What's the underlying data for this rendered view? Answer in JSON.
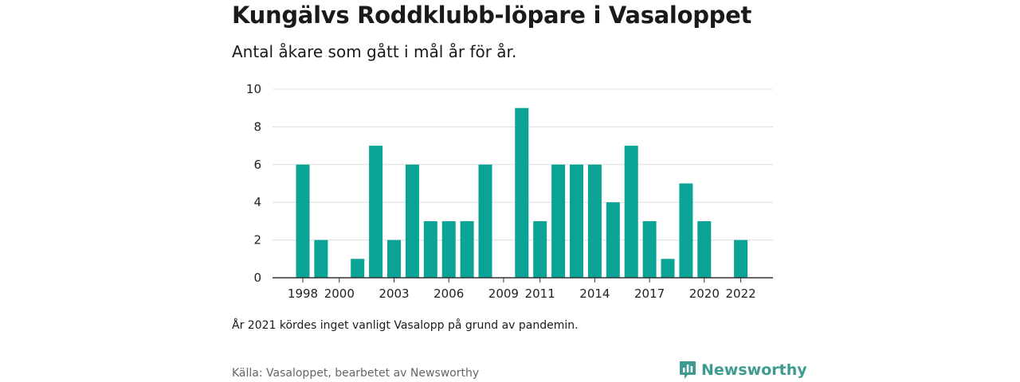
{
  "title": "Kungälvs Roddklubb-löpare i Vasaloppet",
  "subtitle": "Antal åkare som gått i mål år för år.",
  "note": "År 2021 kördes inget vanligt Vasalopp på grund av pandemin.",
  "source": "Källa: Vasaloppet, bearbetet av Newsworthy",
  "brand": {
    "name": "Newsworthy",
    "icon": "newsworthy-logo-icon",
    "color": "#3d9b92"
  },
  "colors": {
    "bar": "#0aa396",
    "grid": "#dddddd",
    "axis": "#333333"
  },
  "chart_data": {
    "type": "bar",
    "title": "Kungälvs Roddklubb-löpare i Vasaloppet",
    "xlabel": "",
    "ylabel": "",
    "ylim": [
      0,
      10
    ],
    "yticks": [
      0,
      2,
      4,
      6,
      8,
      10
    ],
    "grid": true,
    "categories": [
      1998,
      1999,
      2000,
      2001,
      2002,
      2003,
      2004,
      2005,
      2006,
      2007,
      2008,
      2009,
      2010,
      2011,
      2012,
      2013,
      2014,
      2015,
      2016,
      2017,
      2018,
      2019,
      2020,
      2021,
      2022
    ],
    "values": [
      6,
      2,
      0,
      1,
      7,
      2,
      6,
      3,
      3,
      3,
      6,
      0,
      9,
      3,
      6,
      6,
      6,
      4,
      7,
      3,
      1,
      5,
      3,
      0,
      2
    ],
    "xtick_labels": [
      "1998",
      "2000",
      "2003",
      "2006",
      "2009",
      "2011",
      "2014",
      "2017",
      "2020",
      "2022"
    ]
  }
}
